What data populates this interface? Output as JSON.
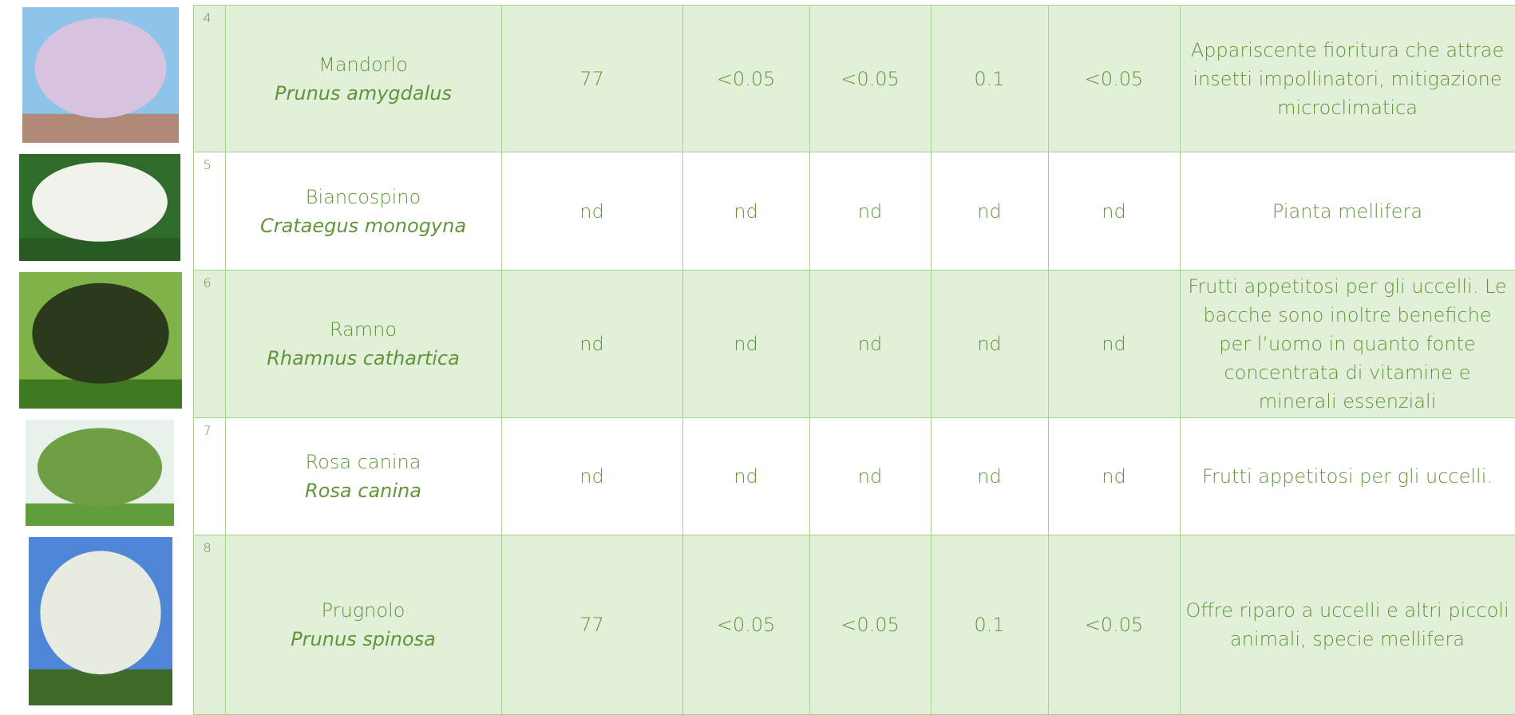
{
  "rows": [
    {
      "number": "4",
      "common_name": "Mandorlo",
      "scientific_name": "Prunus amygdalus",
      "values": [
        "77",
        "<0.05",
        "<0.05",
        "0.1",
        "<0.05"
      ],
      "description": "Appariscente fioritura che attrae insetti impollinatori, mitigazione microclimatica"
    },
    {
      "number": "5",
      "common_name": "Biancospino",
      "scientific_name": "Crataegus monogyna",
      "values": [
        "nd",
        "nd",
        "nd",
        "nd",
        "nd"
      ],
      "description": "Pianta mellifera"
    },
    {
      "number": "6",
      "common_name": "Ramno",
      "scientific_name": "Rhamnus cathartica",
      "values": [
        "nd",
        "nd",
        "nd",
        "nd",
        "nd"
      ],
      "description": "Frutti appetitosi per gli uccelli. Le bacche sono inoltre benefiche per l’uomo in quanto fonte concentrata di vitamine e minerali essenziali"
    },
    {
      "number": "7",
      "common_name": "Rosa canina",
      "scientific_name": "Rosa canina",
      "values": [
        "nd",
        "nd",
        "nd",
        "nd",
        "nd"
      ],
      "description": "Frutti appetitosi per gli uccelli."
    },
    {
      "number": "8",
      "common_name": "Prugnolo",
      "scientific_name": "Prunus spinosa",
      "values": [
        "77",
        "<0.05",
        "<0.05",
        "0.1",
        "<0.05"
      ],
      "description": "Offre riparo a uccelli e altri piccoli animali, specie mellifera"
    }
  ]
}
